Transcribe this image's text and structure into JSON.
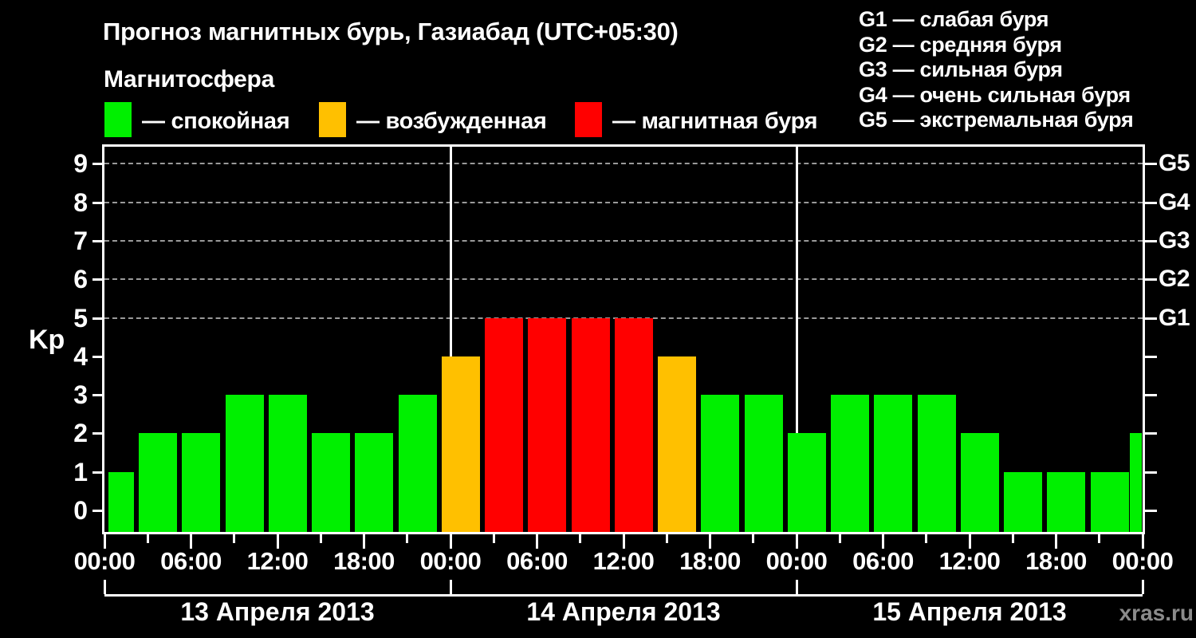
{
  "header": {
    "title": "Прогноз магнитных бурь, Газиабад (UTC+05:30)",
    "subtitle": "Магнитосфера"
  },
  "legend": {
    "items": [
      {
        "name": "quiet",
        "label": "— спокойная",
        "color": "#00f000"
      },
      {
        "name": "excited",
        "label": "— возбужденная",
        "color": "#ffc000"
      },
      {
        "name": "storm",
        "label": "— магнитная буря",
        "color": "#ff0000"
      }
    ]
  },
  "g_legend": {
    "items": [
      "G1 — слабая буря",
      "G2 — средняя буря",
      "G3 — сильная буря",
      "G4 — очень сильная буря",
      "G5 — экстремальная буря"
    ]
  },
  "watermark": "xras.ru",
  "chart_data": {
    "type": "bar",
    "title": "Прогноз магнитных бурь, Газиабад (UTC+05:30)",
    "ylabel": "Kp",
    "ylim": [
      0,
      9
    ],
    "y_ticks": [
      0,
      1,
      2,
      3,
      4,
      5,
      6,
      7,
      8,
      9
    ],
    "grid_levels": [
      5,
      6,
      7,
      8,
      9
    ],
    "grid_on": true,
    "legend_position": "top",
    "right_axis_labels": [
      {
        "kp": 5,
        "label": "G1"
      },
      {
        "kp": 6,
        "label": "G2"
      },
      {
        "kp": 7,
        "label": "G3"
      },
      {
        "kp": 8,
        "label": "G4"
      },
      {
        "kp": 9,
        "label": "G5"
      }
    ],
    "interval_hours": 3,
    "x_major_ticks": [
      {
        "hour": 0,
        "label": "00:00"
      },
      {
        "hour": 6,
        "label": "06:00"
      },
      {
        "hour": 12,
        "label": "12:00"
      },
      {
        "hour": 18,
        "label": "18:00"
      },
      {
        "hour": 24,
        "label": "00:00"
      },
      {
        "hour": 30,
        "label": "06:00"
      },
      {
        "hour": 36,
        "label": "12:00"
      },
      {
        "hour": 42,
        "label": "18:00"
      },
      {
        "hour": 48,
        "label": "00:00"
      },
      {
        "hour": 54,
        "label": "06:00"
      },
      {
        "hour": 60,
        "label": "12:00"
      },
      {
        "hour": 66,
        "label": "18:00"
      },
      {
        "hour": 72,
        "label": "00:00"
      }
    ],
    "days": [
      {
        "date": "13 Апреля 2013",
        "kp_values": [
          1,
          2,
          2,
          3,
          3,
          2,
          2,
          3
        ]
      },
      {
        "date": "14 Апреля 2013",
        "kp_values": [
          4,
          5,
          5,
          5,
          5,
          4,
          3,
          3
        ]
      },
      {
        "date": "15 Апреля 2013",
        "kp_values": [
          2,
          3,
          3,
          3,
          2,
          1,
          1,
          1
        ]
      }
    ],
    "partial_next_bar_kp": 2,
    "color_rules": [
      {
        "kp_max": 3,
        "color": "#00f000",
        "meaning": "спокойная"
      },
      {
        "kp_max": 4,
        "color": "#ffc000",
        "meaning": "возбужденная"
      },
      {
        "kp_max": 9,
        "color": "#ff0000",
        "meaning": "магнитная буря"
      }
    ]
  }
}
